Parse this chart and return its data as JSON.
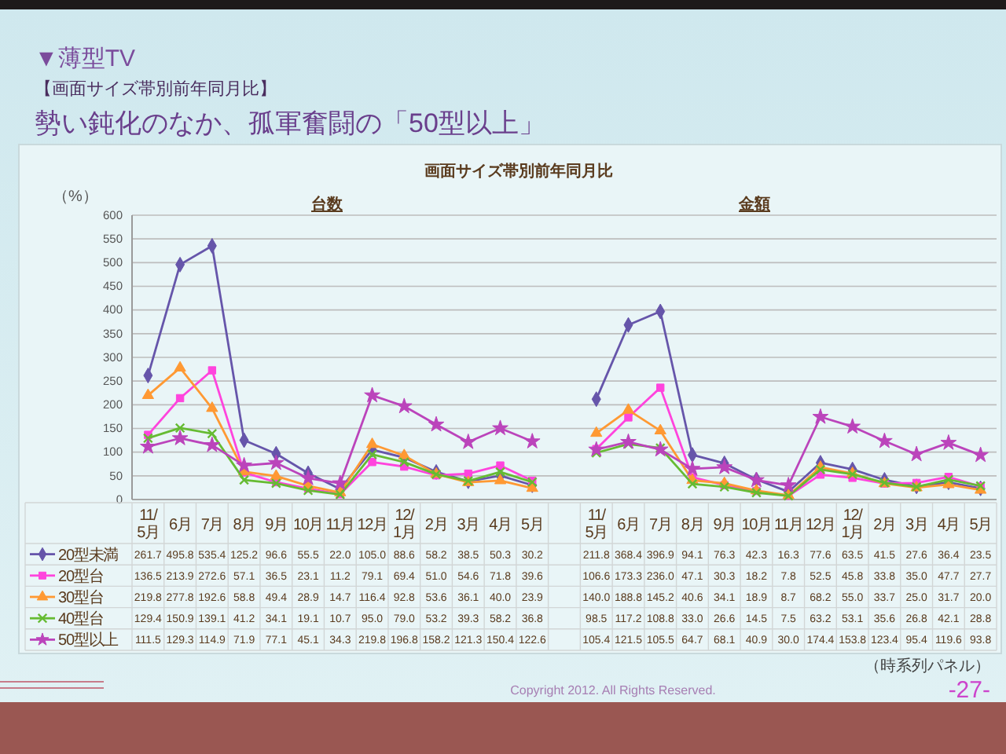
{
  "chart_data": {
    "type": "line",
    "title": "画面サイズ帯別前年同月比",
    "ylabel": "（%）",
    "annotations": [
      "▼薄型TV",
      "【画面サイズ帯別前年同月比】",
      "勢い鈍化のなか、孤軍奮闘の「50型以上」",
      "台数",
      "金額",
      "（時系列パネル）",
      "Copyright 2012. All Rights Reserved.",
      "-27-"
    ],
    "categories": [
      "11/5月",
      "6月",
      "7月",
      "8月",
      "9月",
      "10月",
      "11月",
      "12月",
      "12/1月",
      "2月",
      "3月",
      "4月",
      "5月",
      null,
      "11/5月",
      "6月",
      "7月",
      "8月",
      "9月",
      "10月",
      "11月",
      "12月",
      "12/1月",
      "2月",
      "3月",
      "4月",
      "5月"
    ],
    "series": [
      {
        "name": "20型未満",
        "color": "#6655aa",
        "marker": "diamond",
        "values": [
          261.7,
          495.8,
          535.4,
          125.2,
          96.6,
          55.5,
          22.0,
          105.0,
          88.6,
          58.2,
          38.5,
          50.3,
          30.2,
          null,
          211.8,
          368.4,
          396.9,
          94.1,
          76.3,
          42.3,
          16.3,
          77.6,
          63.5,
          41.5,
          27.6,
          36.4,
          23.5
        ],
        "value_labels": [
          "261.7",
          "495.8",
          "535.4",
          "125.2",
          "96.6",
          "55.5",
          "22.0",
          "105.0",
          "88.6",
          "58.2",
          "38.5",
          "50.3",
          "30.2",
          null,
          "211.8",
          "368.4",
          "396.9",
          "94.1",
          "76.3",
          "42.3",
          "16.3",
          "77.6",
          "63.5",
          "41.5",
          "27.6",
          "36.4",
          "23.5"
        ]
      },
      {
        "name": "20型台",
        "color": "#ff44dd",
        "marker": "square",
        "values": [
          136.5,
          213.9,
          272.6,
          57.1,
          36.5,
          23.1,
          11.2,
          79.1,
          69.4,
          51.0,
          54.6,
          71.8,
          39.6,
          null,
          106.6,
          173.3,
          236.0,
          47.1,
          30.3,
          18.2,
          7.8,
          52.5,
          45.8,
          33.8,
          35.0,
          47.7,
          27.7
        ],
        "value_labels": [
          "136.5",
          "213.9",
          "272.6",
          "57.1",
          "36.5",
          "23.1",
          "11.2",
          "79.1",
          "69.4",
          "51.0",
          "54.6",
          "71.8",
          "39.6",
          null,
          "106.6",
          "173.3",
          "236.0",
          "47.1",
          "30.3",
          "18.2",
          "7.8",
          "52.5",
          "45.8",
          "33.8",
          "35.0",
          "47.7",
          "27.7"
        ]
      },
      {
        "name": "30型台",
        "color": "#ff9933",
        "marker": "triangle",
        "values": [
          219.8,
          277.8,
          192.6,
          58.8,
          49.4,
          28.9,
          14.7,
          116.4,
          92.8,
          53.6,
          36.1,
          40.0,
          23.9,
          null,
          140.0,
          188.8,
          145.2,
          40.6,
          34.1,
          18.9,
          8.7,
          68.2,
          55.0,
          33.7,
          25.0,
          31.7,
          20.0
        ],
        "value_labels": [
          "219.8",
          "277.8",
          "192.6",
          "58.8",
          "49.4",
          "28.9",
          "14.7",
          "116.4",
          "92.8",
          "53.6",
          "36.1",
          "40.0",
          "23.9",
          null,
          "140.0",
          "188.8",
          "145.2",
          "40.6",
          "34.1",
          "18.9",
          "8.7",
          "68.2",
          "55.0",
          "33.7",
          "25.0",
          "31.7",
          "20.0"
        ]
      },
      {
        "name": "40型台",
        "color": "#66bb33",
        "marker": "cross",
        "values": [
          129.4,
          150.9,
          139.1,
          41.2,
          34.1,
          19.1,
          10.7,
          95.0,
          79.0,
          53.2,
          39.3,
          58.2,
          36.8,
          null,
          98.5,
          117.2,
          108.8,
          33.0,
          26.6,
          14.5,
          7.5,
          63.2,
          53.1,
          35.6,
          26.8,
          42.1,
          28.8
        ],
        "value_labels": [
          "129.4",
          "150.9",
          "139.1",
          "41.2",
          "34.1",
          "19.1",
          "10.7",
          "95.0",
          "79.0",
          "53.2",
          "39.3",
          "58.2",
          "36.8",
          null,
          "98.5",
          "117.2",
          "108.8",
          "33.0",
          "26.6",
          "14.5",
          "7.5",
          "63.2",
          "53.1",
          "35.6",
          "26.8",
          "42.1",
          "28.8"
        ]
      },
      {
        "name": "50型以上",
        "color": "#bb44bb",
        "marker": "star",
        "values": [
          111.5,
          129.3,
          114.9,
          71.9,
          77.1,
          45.1,
          34.3,
          219.8,
          196.8,
          158.2,
          121.3,
          150.4,
          122.6,
          null,
          105.4,
          121.5,
          105.5,
          64.7,
          68.1,
          40.9,
          30.0,
          174.4,
          153.8,
          123.4,
          95.4,
          119.6,
          93.8
        ],
        "value_labels": [
          "111.5",
          "129.3",
          "114.9",
          "71.9",
          "77.1",
          "45.1",
          "34.3",
          "219.8",
          "196.8",
          "158.2",
          "121.3",
          "150.4",
          "122.6",
          null,
          "105.4",
          "121.5",
          "105.5",
          "64.7",
          "68.1",
          "40.9",
          "30.0",
          "174.4",
          "153.8",
          "123.4",
          "95.4",
          "119.6",
          "93.8"
        ]
      }
    ],
    "ylim": [
      0,
      600
    ],
    "yticks": [
      0,
      50,
      100,
      150,
      200,
      250,
      300,
      350,
      400,
      450,
      500,
      550,
      600
    ],
    "grid": "y",
    "legend": "bottom"
  }
}
